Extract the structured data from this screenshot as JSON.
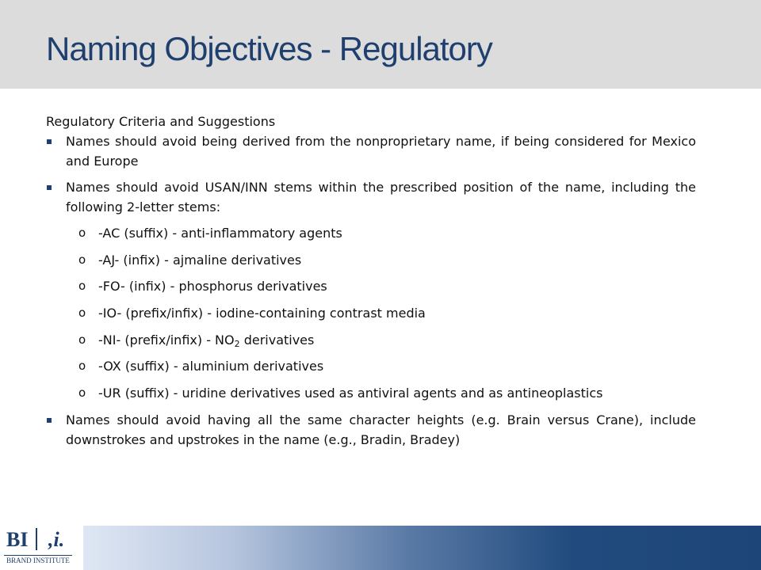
{
  "slide": {
    "title": "Naming Objectives - Regulatory",
    "subheading": "Regulatory Criteria and Suggestions"
  },
  "bullets": [
    "Names should avoid being derived from the nonproprietary name, if being considered for Mexico and Europe",
    "Names should avoid USAN/INN stems within the prescribed position of the name, including the following 2-letter stems:",
    "Names should avoid having all the same character heights (e.g. Brain versus Crane), include downstrokes and upstrokes in the name (e.g., Bradin, Bradey)"
  ],
  "stems": [
    "-AC (suffix) - anti-inflammatory agents",
    "-AJ- (infix) - ajmaline derivatives",
    "-FO- (infix) - phosphorus derivatives",
    "-IO- (prefix/infix) - iodine-containing contrast media",
    {
      "before": "-NI- (prefix/infix) - NO",
      "subscript": "2",
      "after": " derivatives"
    },
    "-OX (suffix) - aluminium derivatives",
    "-UR (suffix) - uridine derivatives used as antiviral agents and as antineoplastics"
  ],
  "markers": {
    "bullet": "square",
    "sub_bullet": "o"
  },
  "logo": {
    "letters": "BI",
    "mark": ",i.",
    "text": "BRAND INSTITUTE"
  },
  "colors": {
    "title": "#1f3f6e",
    "title_band": "#dcdcdc",
    "accent": "#1f3f6e"
  }
}
